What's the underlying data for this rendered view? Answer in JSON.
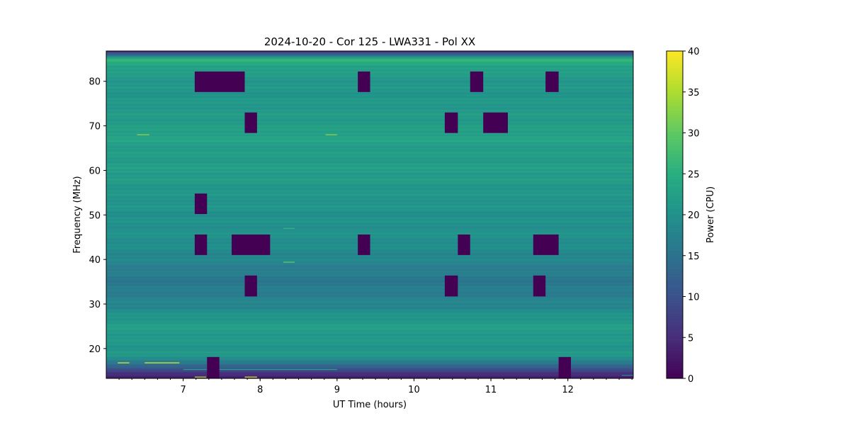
{
  "chart_data": {
    "type": "heatmap",
    "title": "2024-10-20 - Cor 125 - LWA331 - Pol XX",
    "xlabel": "UT Time (hours)",
    "ylabel": "Frequency (MHz)",
    "colorbar_label": "Power (CPU)",
    "colormap": "viridis",
    "xlim": [
      6.0,
      12.85
    ],
    "ylim": [
      13.3,
      86.8
    ],
    "clim": [
      0,
      40
    ],
    "xticks": [
      7,
      8,
      9,
      10,
      11,
      12
    ],
    "xtick_labels": [
      "7",
      "8",
      "9",
      "10",
      "11",
      "12"
    ],
    "yticks": [
      20,
      30,
      40,
      50,
      60,
      70,
      80
    ],
    "ytick_labels": [
      "20",
      "30",
      "40",
      "50",
      "60",
      "70",
      "80"
    ],
    "colorbar_ticks": [
      0,
      5,
      10,
      15,
      20,
      25,
      30,
      35,
      40
    ],
    "colorbar_tick_labels": [
      "0",
      "5",
      "10",
      "15",
      "20",
      "25",
      "30",
      "35",
      "40"
    ],
    "frequency_profile": {
      "freq_mhz": [
        13.3,
        14,
        15,
        16,
        17,
        18,
        19,
        20,
        22,
        25,
        28,
        30,
        32,
        35,
        38,
        40,
        42,
        45,
        50,
        55,
        60,
        65,
        68,
        70,
        75,
        78,
        80,
        82,
        84,
        85,
        86,
        86.8
      ],
      "power": [
        3,
        5,
        8,
        12,
        17,
        20,
        21,
        21,
        21,
        22,
        20,
        18,
        17,
        16,
        17,
        18,
        19,
        20,
        20,
        21,
        22,
        22,
        23,
        22,
        21,
        21,
        21,
        22,
        24,
        26,
        14,
        5
      ]
    },
    "flagged_blocks": [
      {
        "t0": 7.15,
        "t1": 7.8,
        "f0": 77.6,
        "f1": 82.2
      },
      {
        "t0": 9.27,
        "t1": 9.43,
        "f0": 77.6,
        "f1": 82.2
      },
      {
        "t0": 10.73,
        "t1": 10.9,
        "f0": 77.6,
        "f1": 82.2
      },
      {
        "t0": 11.71,
        "t1": 11.88,
        "f0": 77.6,
        "f1": 82.2
      },
      {
        "t0": 7.8,
        "t1": 7.96,
        "f0": 68.4,
        "f1": 73.0
      },
      {
        "t0": 10.4,
        "t1": 10.57,
        "f0": 68.4,
        "f1": 73.0
      },
      {
        "t0": 10.9,
        "t1": 11.22,
        "f0": 68.4,
        "f1": 73.0
      },
      {
        "t0": 7.15,
        "t1": 7.31,
        "f0": 50.2,
        "f1": 54.8
      },
      {
        "t0": 7.15,
        "t1": 7.31,
        "f0": 41.0,
        "f1": 45.6
      },
      {
        "t0": 7.63,
        "t1": 8.13,
        "f0": 41.0,
        "f1": 45.6
      },
      {
        "t0": 9.27,
        "t1": 9.43,
        "f0": 41.0,
        "f1": 45.6
      },
      {
        "t0": 10.57,
        "t1": 10.73,
        "f0": 41.0,
        "f1": 45.6
      },
      {
        "t0": 11.55,
        "t1": 11.88,
        "f0": 41.0,
        "f1": 45.6
      },
      {
        "t0": 7.8,
        "t1": 7.96,
        "f0": 31.7,
        "f1": 36.4
      },
      {
        "t0": 10.4,
        "t1": 10.57,
        "f0": 31.7,
        "f1": 36.4
      },
      {
        "t0": 11.55,
        "t1": 11.71,
        "f0": 31.7,
        "f1": 36.4
      },
      {
        "t0": 7.31,
        "t1": 7.47,
        "f0": 13.3,
        "f1": 18.1
      },
      {
        "t0": 11.88,
        "t1": 12.04,
        "f0": 13.3,
        "f1": 18.1
      }
    ],
    "rfi_lines": [
      {
        "t0": 6.4,
        "t1": 6.56,
        "f": 68.0,
        "power": 33
      },
      {
        "t0": 8.85,
        "t1": 9.0,
        "f": 68.0,
        "power": 33
      },
      {
        "t0": 8.3,
        "t1": 8.45,
        "f": 39.4,
        "power": 30
      },
      {
        "t0": 8.3,
        "t1": 8.45,
        "f": 47.0,
        "power": 26
      },
      {
        "t0": 6.15,
        "t1": 6.3,
        "f": 16.8,
        "power": 38
      },
      {
        "t0": 6.5,
        "t1": 6.95,
        "f": 16.8,
        "power": 38
      },
      {
        "t0": 7.15,
        "t1": 7.3,
        "f": 13.6,
        "power": 36
      },
      {
        "t0": 7.8,
        "t1": 7.96,
        "f": 13.6,
        "power": 38
      },
      {
        "t0": 7.0,
        "t1": 9.0,
        "f": 15.3,
        "power": 22
      },
      {
        "t0": 12.7,
        "t1": 12.85,
        "f": 14.0,
        "power": 18
      }
    ]
  }
}
